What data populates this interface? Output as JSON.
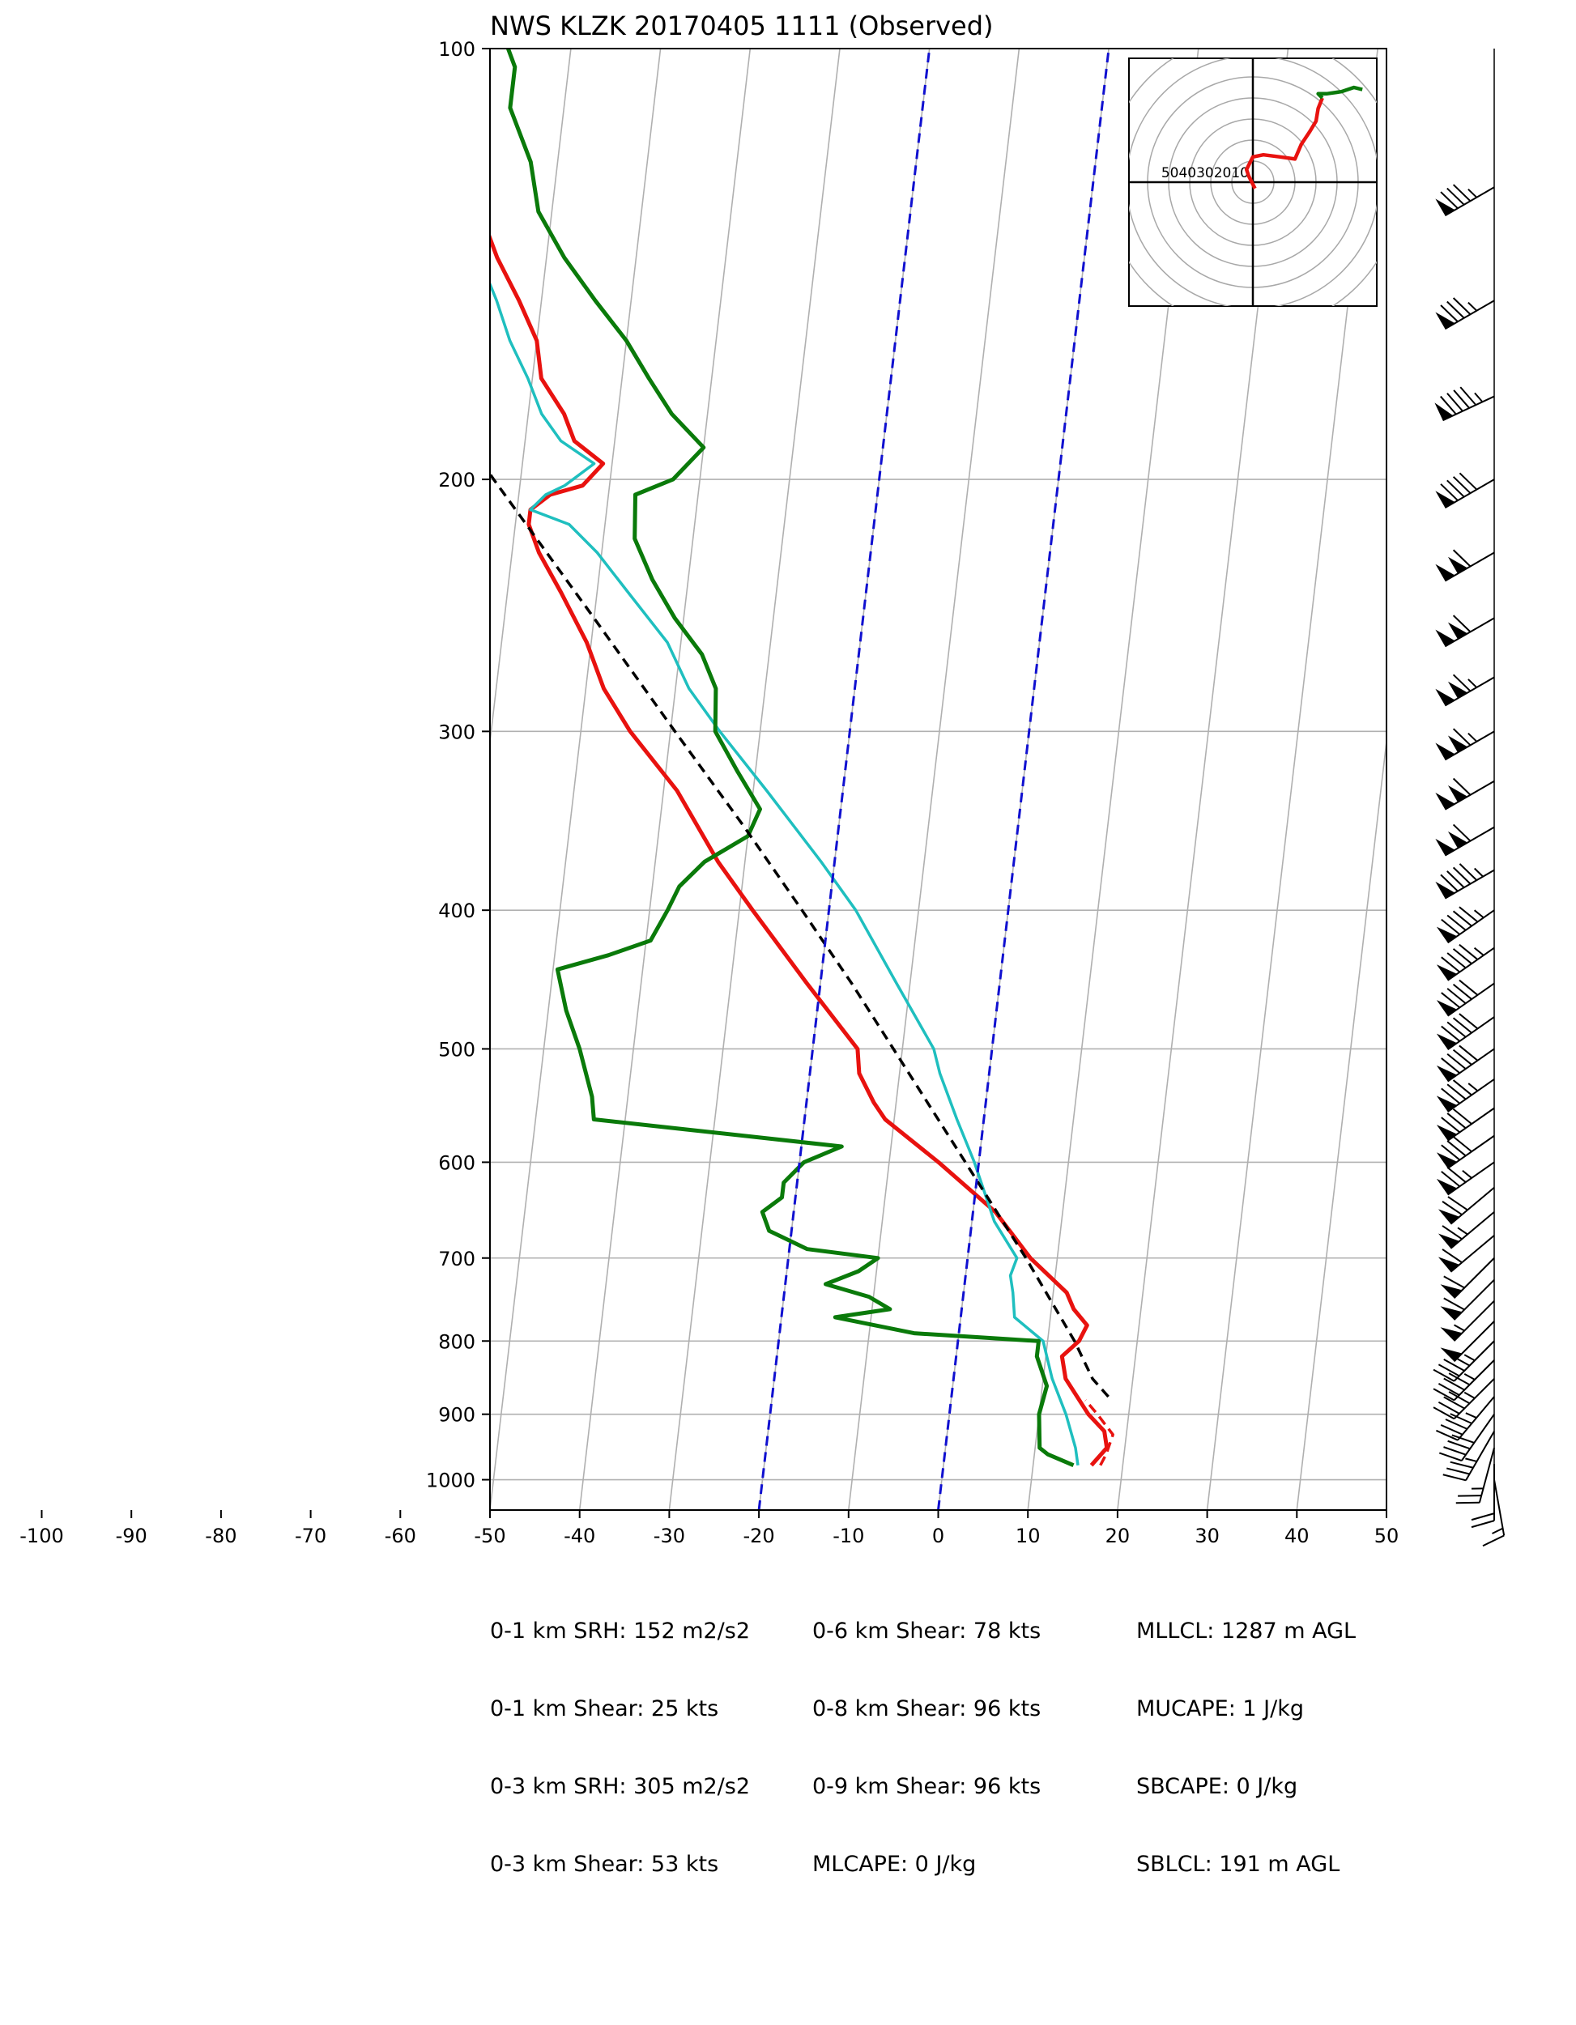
{
  "title": "NWS KLZK 20170405 1111   (Observed)",
  "colors": {
    "temperature": "#e8120f",
    "dewpoint": "#0a7a0a",
    "wetbulb": "#1fbfbf",
    "parcel": "#000000",
    "isotherm_dashed": "#1010d0",
    "grid": "#b0b0b0"
  },
  "stats": {
    "col1": [
      "0-1 km SRH: 152 m2/s2",
      "0-1 km Shear: 25 kts",
      "0-3 km SRH: 305 m2/s2",
      "0-3 km Shear: 53 kts"
    ],
    "col2": [
      "0-6 km Shear: 78 kts",
      "0-8 km Shear: 96 kts",
      "0-9 km Shear: 96 kts",
      "MLCAPE: 0 J/kg"
    ],
    "col3": [
      "MLLCL: 1287 m AGL",
      "MUCAPE: 1 J/kg",
      "SBCAPE: 0 J/kg",
      "SBLCL: 191 m AGL"
    ]
  },
  "hodograph": {
    "ring_labels": [
      "50",
      "40",
      "30",
      "20",
      "10"
    ],
    "ring_label_text": "5040302010",
    "rings_kts": [
      10,
      20,
      30,
      40,
      50,
      60,
      70
    ],
    "trace": [
      [
        1,
        -3
      ],
      [
        -2,
        3
      ],
      [
        -3,
        6
      ],
      [
        0,
        12
      ],
      [
        5,
        13
      ],
      [
        13,
        12
      ],
      [
        20,
        11
      ],
      [
        23,
        18
      ],
      [
        27,
        24
      ],
      [
        30,
        29
      ],
      [
        31,
        35
      ],
      [
        33,
        40
      ],
      [
        31,
        42
      ],
      [
        35,
        42
      ],
      [
        42,
        43
      ],
      [
        48,
        45
      ],
      [
        52,
        44
      ]
    ]
  },
  "chart_data": {
    "type": "skew-t",
    "title": "NWS KLZK 20170405 1111   (Observed)",
    "xlabel": "",
    "ylabel": "",
    "x_ticks": [
      -100,
      -90,
      -80,
      -70,
      -60,
      -50,
      -40,
      -30,
      -20,
      -10,
      0,
      10,
      20,
      30,
      40,
      50
    ],
    "x_range": [
      -50,
      50
    ],
    "y_ticks": [
      100,
      200,
      300,
      400,
      500,
      600,
      700,
      800,
      900,
      1000
    ],
    "y_range": [
      1050,
      100
    ],
    "y_scale": "log",
    "grid": true,
    "series": [
      {
        "key": "temperature",
        "style": "solid",
        "points": [
          [
            977,
            16.5
          ],
          [
            950,
            18.0
          ],
          [
            925,
            17.5
          ],
          [
            900,
            15.5
          ],
          [
            850,
            12.5
          ],
          [
            820,
            11.8
          ],
          [
            800,
            13.5
          ],
          [
            780,
            14.2
          ],
          [
            760,
            12.5
          ],
          [
            740,
            11.5
          ],
          [
            700,
            7.0
          ],
          [
            650,
            2.5
          ],
          [
            600,
            -4.5
          ],
          [
            560,
            -11.0
          ],
          [
            545,
            -12.5
          ],
          [
            520,
            -14.5
          ],
          [
            500,
            -15.0
          ],
          [
            450,
            -21.5
          ],
          [
            400,
            -28.5
          ],
          [
            370,
            -33.0
          ],
          [
            330,
            -38.5
          ],
          [
            300,
            -44.5
          ],
          [
            280,
            -48.0
          ],
          [
            260,
            -50.5
          ],
          [
            240,
            -54.0
          ],
          [
            225,
            -57.0
          ],
          [
            215,
            -58.5
          ],
          [
            210,
            -58.5
          ],
          [
            205,
            -56.5
          ],
          [
            202,
            -53.0
          ],
          [
            195,
            -51.0
          ],
          [
            188,
            -54.5
          ],
          [
            180,
            -56.0
          ],
          [
            170,
            -59.0
          ],
          [
            160,
            -60.0
          ],
          [
            150,
            -62.5
          ],
          [
            140,
            -65.5
          ],
          [
            130,
            -68.0
          ],
          [
            120,
            -70.0
          ],
          [
            110,
            -73.0
          ],
          [
            103,
            -74.0
          ],
          [
            100,
            -75.0
          ]
        ]
      },
      {
        "key": "temperature_parcel_dashed",
        "style": "dashed",
        "points": [
          [
            977,
            17.5
          ],
          [
            960,
            18.0
          ],
          [
            930,
            18.5
          ],
          [
            900,
            16.5
          ],
          [
            880,
            15.0
          ]
        ]
      },
      {
        "key": "wetbulb",
        "style": "solid",
        "points": [
          [
            977,
            15.0
          ],
          [
            950,
            14.5
          ],
          [
            900,
            13.0
          ],
          [
            850,
            11.0
          ],
          [
            800,
            9.5
          ],
          [
            770,
            6.0
          ],
          [
            740,
            5.5
          ],
          [
            720,
            5.0
          ],
          [
            700,
            5.5
          ],
          [
            660,
            2.5
          ],
          [
            600,
            -0.5
          ],
          [
            560,
            -3.0
          ],
          [
            520,
            -5.5
          ],
          [
            500,
            -6.5
          ],
          [
            450,
            -11.5
          ],
          [
            400,
            -17.0
          ],
          [
            370,
            -21.5
          ],
          [
            330,
            -28.5
          ],
          [
            300,
            -34.5
          ],
          [
            280,
            -38.5
          ],
          [
            260,
            -41.5
          ],
          [
            240,
            -46.5
          ],
          [
            225,
            -50.5
          ],
          [
            215,
            -54.0
          ],
          [
            210,
            -58.5
          ],
          [
            205,
            -57.0
          ],
          [
            202,
            -55.0
          ],
          [
            195,
            -52.0
          ],
          [
            188,
            -56.0
          ],
          [
            180,
            -58.5
          ],
          [
            170,
            -60.5
          ],
          [
            160,
            -63.0
          ],
          [
            150,
            -65.0
          ],
          [
            140,
            -67.5
          ],
          [
            130,
            -70.0
          ],
          [
            120,
            -72.5
          ],
          [
            110,
            -75.0
          ],
          [
            103,
            -76.5
          ],
          [
            100,
            -77.5
          ]
        ]
      },
      {
        "key": "dewpoint",
        "style": "solid",
        "points": [
          [
            977,
            14.5
          ],
          [
            960,
            11.5
          ],
          [
            950,
            10.5
          ],
          [
            900,
            10.0
          ],
          [
            860,
            10.5
          ],
          [
            820,
            9.0
          ],
          [
            800,
            9.0
          ],
          [
            790,
            -5.0
          ],
          [
            770,
            -14.0
          ],
          [
            760,
            -8.0
          ],
          [
            745,
            -10.5
          ],
          [
            730,
            -15.5
          ],
          [
            715,
            -12.0
          ],
          [
            700,
            -10.0
          ],
          [
            690,
            -18.0
          ],
          [
            670,
            -22.5
          ],
          [
            650,
            -23.5
          ],
          [
            635,
            -21.5
          ],
          [
            620,
            -21.5
          ],
          [
            600,
            -19.5
          ],
          [
            585,
            -15.5
          ],
          [
            560,
            -43.5
          ],
          [
            540,
            -44.0
          ],
          [
            500,
            -46.0
          ],
          [
            470,
            -48.0
          ],
          [
            440,
            -49.5
          ],
          [
            430,
            -44.0
          ],
          [
            420,
            -39.5
          ],
          [
            400,
            -38.0
          ],
          [
            385,
            -37.0
          ],
          [
            370,
            -34.5
          ],
          [
            355,
            -30.0
          ],
          [
            340,
            -29.0
          ],
          [
            320,
            -32.0
          ],
          [
            300,
            -35.0
          ],
          [
            280,
            -35.5
          ],
          [
            265,
            -37.5
          ],
          [
            250,
            -41.0
          ],
          [
            235,
            -44.0
          ],
          [
            220,
            -46.5
          ],
          [
            205,
            -47.0
          ],
          [
            200,
            -43.0
          ],
          [
            190,
            -40.0
          ],
          [
            180,
            -44.0
          ],
          [
            170,
            -47.0
          ],
          [
            160,
            -50.0
          ],
          [
            150,
            -54.0
          ],
          [
            140,
            -58.0
          ],
          [
            130,
            -61.5
          ],
          [
            120,
            -63.0
          ],
          [
            110,
            -66.0
          ],
          [
            103,
            -66.0
          ],
          [
            100,
            -67.0
          ]
        ]
      },
      {
        "key": "parcel",
        "style": "dashed",
        "points": [
          [
            875,
            17.5
          ],
          [
            850,
            15.5
          ],
          [
            800,
            13.0
          ],
          [
            700,
            6.5
          ],
          [
            600,
            -1.5
          ],
          [
            500,
            -11.0
          ],
          [
            450,
            -16.5
          ],
          [
            400,
            -23.0
          ],
          [
            350,
            -30.5
          ],
          [
            300,
            -39.5
          ],
          [
            250,
            -50.0
          ],
          [
            200,
            -63.0
          ],
          [
            150,
            -79.0
          ],
          [
            135,
            -85.0
          ]
        ]
      },
      {
        "key": "isotherm_-20",
        "style": "dashed",
        "points": [
          [
            1050,
            -20
          ],
          [
            100,
            -20
          ]
        ]
      },
      {
        "key": "isotherm_0",
        "style": "dashed",
        "points": [
          [
            1050,
            0
          ],
          [
            100,
            0
          ]
        ]
      }
    ],
    "wind_barbs": [
      {
        "p": 1000,
        "speed_kts": 15,
        "dir_deg": 170
      },
      {
        "p": 975,
        "speed_kts": 20,
        "dir_deg": 180
      },
      {
        "p": 950,
        "speed_kts": 25,
        "dir_deg": 195
      },
      {
        "p": 925,
        "speed_kts": 35,
        "dir_deg": 210
      },
      {
        "p": 900,
        "speed_kts": 40,
        "dir_deg": 215
      },
      {
        "p": 875,
        "speed_kts": 45,
        "dir_deg": 220
      },
      {
        "p": 850,
        "speed_kts": 45,
        "dir_deg": 225
      },
      {
        "p": 825,
        "speed_kts": 45,
        "dir_deg": 225
      },
      {
        "p": 800,
        "speed_kts": 45,
        "dir_deg": 225
      },
      {
        "p": 775,
        "speed_kts": 50,
        "dir_deg": 225
      },
      {
        "p": 750,
        "speed_kts": 55,
        "dir_deg": 225
      },
      {
        "p": 725,
        "speed_kts": 60,
        "dir_deg": 225
      },
      {
        "p": 700,
        "speed_kts": 60,
        "dir_deg": 225
      },
      {
        "p": 675,
        "speed_kts": 60,
        "dir_deg": 230
      },
      {
        "p": 650,
        "speed_kts": 65,
        "dir_deg": 230
      },
      {
        "p": 625,
        "speed_kts": 70,
        "dir_deg": 230
      },
      {
        "p": 600,
        "speed_kts": 75,
        "dir_deg": 235
      },
      {
        "p": 575,
        "speed_kts": 80,
        "dir_deg": 235
      },
      {
        "p": 550,
        "speed_kts": 80,
        "dir_deg": 235
      },
      {
        "p": 525,
        "speed_kts": 85,
        "dir_deg": 235
      },
      {
        "p": 500,
        "speed_kts": 90,
        "dir_deg": 235
      },
      {
        "p": 475,
        "speed_kts": 90,
        "dir_deg": 235
      },
      {
        "p": 450,
        "speed_kts": 90,
        "dir_deg": 235
      },
      {
        "p": 425,
        "speed_kts": 95,
        "dir_deg": 235
      },
      {
        "p": 400,
        "speed_kts": 95,
        "dir_deg": 235
      },
      {
        "p": 375,
        "speed_kts": 95,
        "dir_deg": 240
      },
      {
        "p": 350,
        "speed_kts": 110,
        "dir_deg": 240
      },
      {
        "p": 325,
        "speed_kts": 110,
        "dir_deg": 240
      },
      {
        "p": 300,
        "speed_kts": 115,
        "dir_deg": 240
      },
      {
        "p": 275,
        "speed_kts": 115,
        "dir_deg": 240
      },
      {
        "p": 250,
        "speed_kts": 110,
        "dir_deg": 240
      },
      {
        "p": 225,
        "speed_kts": 110,
        "dir_deg": 240
      },
      {
        "p": 200,
        "speed_kts": 90,
        "dir_deg": 240
      },
      {
        "p": 175,
        "speed_kts": 95,
        "dir_deg": 245
      },
      {
        "p": 150,
        "speed_kts": 85,
        "dir_deg": 240
      },
      {
        "p": 125,
        "speed_kts": 85,
        "dir_deg": 240
      }
    ]
  }
}
